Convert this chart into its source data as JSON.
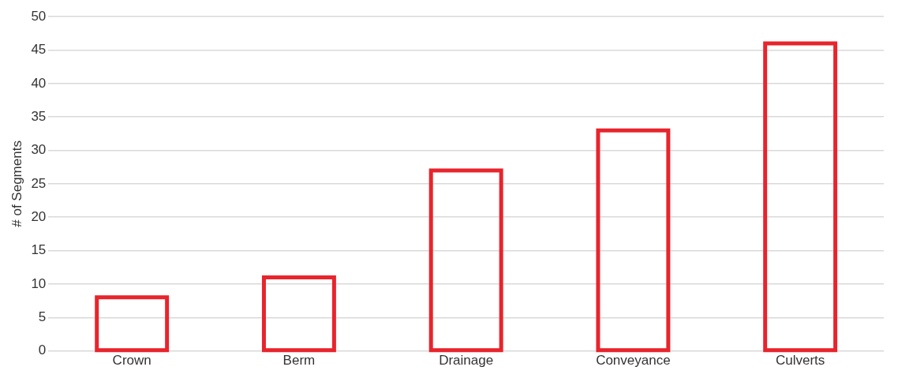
{
  "chart_data": {
    "type": "bar",
    "ylabel": "# of Segments",
    "categories": [
      "Crown",
      "Berm",
      "Drainage",
      "Conveyance",
      "Culverts"
    ],
    "values": [
      8,
      11,
      27,
      33,
      46
    ],
    "color": "#e8242c",
    "ylim": [
      0,
      50
    ],
    "yticks": [
      0,
      5,
      10,
      15,
      20,
      25,
      30,
      35,
      40,
      45,
      50
    ],
    "grid": "y"
  }
}
